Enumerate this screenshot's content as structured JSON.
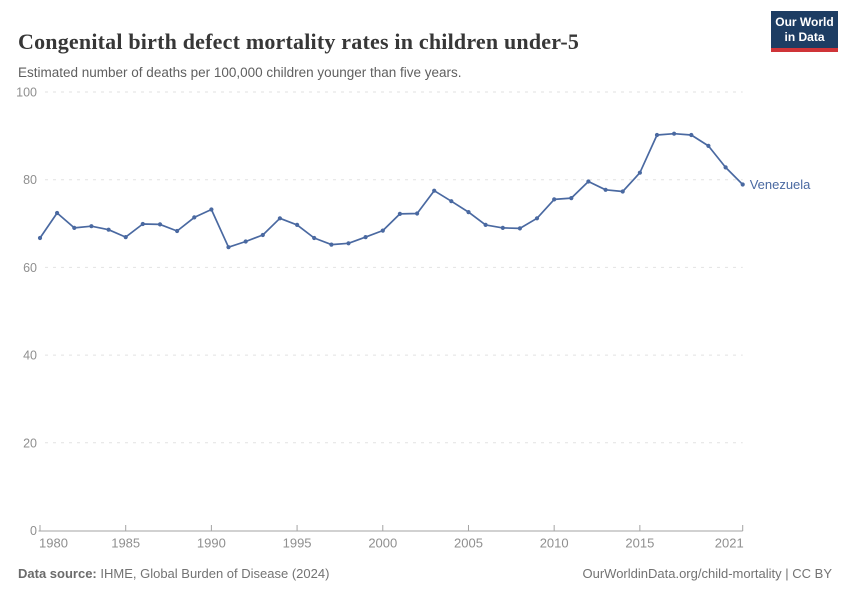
{
  "header": {
    "title": "Congenital birth defect mortality rates in children under-5",
    "subtitle": "Estimated number of deaths per 100,000 children younger than five years."
  },
  "logo": {
    "line1": "Our World",
    "line2": "in Data"
  },
  "colors": {
    "brand_navy": "#1d3d63",
    "brand_red": "#cf3438",
    "line_blue": "#4a69a1",
    "grid_gray": "#e2e2e2",
    "axis_gray": "#a3a3a3",
    "tick_label_gray": "#8f8f8f"
  },
  "chart_data": {
    "type": "line",
    "title": "Congenital birth defect mortality rates in children under-5",
    "subtitle": "Estimated number of deaths per 100,000 children younger than five years.",
    "xlabel": "",
    "ylabel": "",
    "xlim": [
      1980,
      2021
    ],
    "ylim": [
      0,
      100
    ],
    "yticks": [
      0,
      20,
      40,
      60,
      80,
      100
    ],
    "xticks": [
      1980,
      1985,
      1990,
      1995,
      2000,
      2005,
      2010,
      2015,
      2021
    ],
    "grid": "horizontal-dashed",
    "legend_position": "end-of-line-label",
    "series": [
      {
        "name": "Venezuela",
        "color": "#4a69a1",
        "x": [
          1980,
          1981,
          1982,
          1983,
          1984,
          1985,
          1986,
          1987,
          1988,
          1989,
          1990,
          1991,
          1992,
          1993,
          1994,
          1995,
          1996,
          1997,
          1998,
          1999,
          2000,
          2001,
          2002,
          2003,
          2004,
          2005,
          2006,
          2007,
          2008,
          2009,
          2010,
          2011,
          2012,
          2013,
          2014,
          2015,
          2016,
          2017,
          2018,
          2019,
          2020,
          2021
        ],
        "values": [
          66.7,
          72.4,
          69.0,
          69.4,
          68.6,
          66.9,
          69.9,
          69.8,
          68.3,
          71.4,
          73.2,
          64.6,
          65.9,
          67.4,
          71.2,
          69.7,
          66.7,
          65.2,
          65.5,
          66.9,
          68.4,
          72.2,
          72.3,
          77.5,
          75.1,
          72.6,
          69.7,
          69.0,
          68.9,
          71.2,
          75.5,
          75.8,
          79.6,
          77.7,
          77.3,
          81.6,
          90.2,
          90.5,
          90.2,
          87.7,
          82.8,
          78.9
        ]
      }
    ]
  },
  "footer": {
    "source_label": "Data source:",
    "source_value": " IHME, Global Burden of Disease (2024)",
    "link": "OurWorldinData.org/child-mortality | CC BY"
  }
}
